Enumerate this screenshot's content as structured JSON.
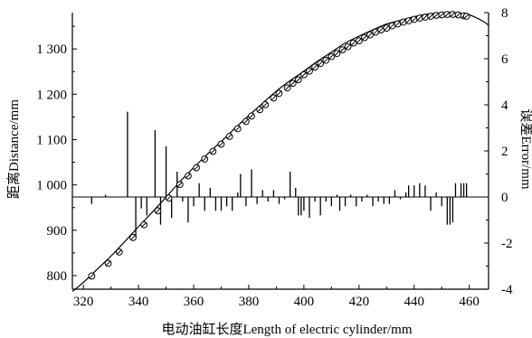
{
  "chart_data": {
    "type": "line",
    "xlabel": "电动油缸长度Length of electric cylinder/mm",
    "ylabel_left": "距离Distance/mm",
    "ylabel_right": "误差Error/mm",
    "xlim": [
      316,
      467
    ],
    "ylim_left": [
      770,
      1380
    ],
    "ylim_right": [
      -4,
      8
    ],
    "x_ticks": [
      320,
      340,
      360,
      380,
      400,
      420,
      440,
      460
    ],
    "x_tick_labels": [
      "320",
      "340",
      "360",
      "380",
      "400",
      "420",
      "440",
      "460"
    ],
    "y_left_ticks": [
      800,
      900,
      1000,
      1100,
      1200,
      1300
    ],
    "y_left_tick_labels": [
      "800",
      "900",
      "1 000",
      "1 100",
      "1 200",
      "1 300"
    ],
    "y_right_ticks": [
      -4,
      -2,
      0,
      2,
      4,
      6,
      8
    ],
    "y_right_tick_labels": [
      "-4",
      "-2",
      "0",
      "2",
      "4",
      "6",
      "8"
    ],
    "grid": false,
    "series": [
      {
        "kind": "fit-curve",
        "axis": "left",
        "color": "#000000",
        "x": [
          316,
          320,
          325,
          330,
          335,
          340,
          345,
          350,
          355,
          360,
          365,
          370,
          375,
          380,
          385,
          390,
          395,
          400,
          405,
          410,
          415,
          420,
          425,
          430,
          435,
          440,
          445,
          450,
          455,
          460,
          465,
          467
        ],
        "y": [
          765,
          785,
          814,
          843,
          875,
          908,
          940,
          973,
          1007,
          1038,
          1068,
          1096,
          1125,
          1153,
          1180,
          1207,
          1230,
          1251,
          1273,
          1293,
          1313,
          1328,
          1342,
          1355,
          1363,
          1371,
          1377,
          1379,
          1378,
          1375,
          1361,
          1352
        ]
      },
      {
        "kind": "measured-points",
        "axis": "left",
        "marker": "circle-cross",
        "x": [
          323,
          329,
          333,
          338,
          342,
          347,
          351,
          355,
          358,
          361,
          364,
          367,
          370,
          373,
          376,
          379,
          381,
          384,
          386,
          389,
          391,
          394,
          396,
          398,
          400,
          402,
          404,
          406,
          408,
          410,
          412,
          414,
          416,
          418,
          420,
          422,
          424,
          426,
          428,
          430,
          432,
          434,
          436,
          438,
          440,
          442,
          444,
          446,
          448,
          450,
          452,
          454,
          456,
          458,
          459
        ],
        "y": [
          799,
          827,
          852,
          884,
          912,
          943,
          971,
          1001,
          1020,
          1038,
          1057,
          1074,
          1090,
          1107,
          1124,
          1140,
          1152,
          1166,
          1177,
          1192,
          1202,
          1214,
          1224,
          1232,
          1243,
          1251,
          1260,
          1268,
          1275,
          1283,
          1290,
          1298,
          1305,
          1313,
          1318,
          1325,
          1331,
          1337,
          1342,
          1346,
          1351,
          1355,
          1359,
          1362,
          1365,
          1368,
          1370,
          1372,
          1374,
          1375,
          1376,
          1376,
          1375,
          1373,
          1372
        ]
      },
      {
        "kind": "error-bars",
        "axis": "right",
        "x": [
          323,
          328,
          336,
          339,
          341,
          343,
          346,
          348,
          350,
          352,
          354,
          356,
          358,
          360,
          362,
          364,
          366,
          368,
          370,
          372,
          374,
          376,
          377,
          379,
          381,
          383,
          385,
          387,
          389,
          391,
          393,
          395,
          397,
          398,
          399,
          400,
          402,
          404,
          406,
          408,
          410,
          412,
          413,
          415,
          417,
          419,
          421,
          423,
          425,
          427,
          429,
          431,
          433,
          435,
          437,
          438,
          440,
          442,
          444,
          446,
          448,
          450,
          452,
          453,
          454,
          455,
          457,
          458,
          459
        ],
        "values": [
          -0.3,
          0.1,
          3.7,
          -1.7,
          -0.5,
          -0.8,
          2.9,
          -1.2,
          2.2,
          -0.9,
          1.1,
          -0.2,
          -1.1,
          -0.4,
          0.6,
          -0.6,
          0.4,
          -0.6,
          -0.6,
          -0.4,
          -0.6,
          0.2,
          1.0,
          -0.4,
          1.2,
          -0.3,
          0.3,
          -0.2,
          0.3,
          -0.3,
          -0.1,
          1.1,
          0.4,
          -0.8,
          -0.8,
          -0.6,
          -0.9,
          -0.2,
          -0.8,
          -0.2,
          -0.4,
          0.1,
          -0.6,
          -0.4,
          0.1,
          -0.4,
          -0.2,
          0.1,
          -0.4,
          -0.2,
          -0.3,
          -0.3,
          0.3,
          -0.1,
          0.2,
          0.5,
          0.5,
          0.6,
          0.5,
          -0.6,
          0.2,
          -0.4,
          -1.2,
          -1.2,
          -1.1,
          0.6,
          0.6,
          0.6,
          0.6
        ]
      }
    ]
  }
}
